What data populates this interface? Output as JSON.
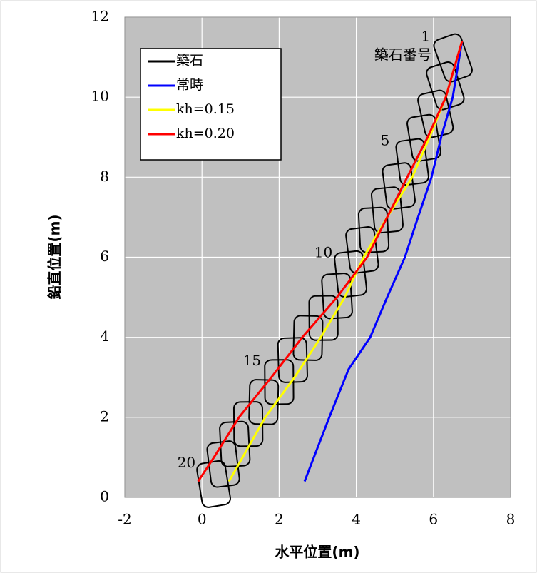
{
  "chart_data": {
    "type": "line",
    "x_label": "水平位置(m)",
    "y_label": "鉛直位置(m)",
    "annotation": "築石番号",
    "xlim": [
      -2,
      8
    ],
    "xticks": [
      -2,
      0,
      2,
      4,
      6,
      8
    ],
    "ylim": [
      0,
      12
    ],
    "yticks": [
      0,
      2,
      4,
      6,
      8,
      10,
      12
    ],
    "grid": true,
    "legend": "upper-left",
    "series": [
      {
        "name": "築石",
        "color": "#000000",
        "style": "stones",
        "x": [
          6.5,
          6.3,
          6.05,
          5.75,
          5.45,
          5.1,
          4.8,
          4.45,
          4.15,
          3.85,
          3.5,
          3.15,
          2.75,
          2.35,
          2.0,
          1.6,
          1.2,
          0.85,
          0.55,
          0.3
        ],
        "values": [
          11.0,
          10.3,
          9.6,
          9.0,
          8.4,
          7.8,
          7.2,
          6.7,
          6.2,
          5.6,
          5.05,
          4.5,
          4.0,
          3.45,
          2.9,
          2.4,
          1.85,
          1.35,
          0.85,
          0.35
        ],
        "value_labels": [
          "1",
          null,
          null,
          null,
          "5",
          null,
          null,
          null,
          null,
          "10",
          null,
          null,
          null,
          null,
          "15",
          null,
          null,
          null,
          null,
          "20"
        ]
      },
      {
        "name": "常時",
        "color": "#0000ff",
        "x": [
          2.66,
          3.3,
          3.8,
          4.36,
          4.8,
          5.26,
          5.6,
          5.95,
          6.2,
          6.5,
          6.74
        ],
        "values": [
          0.4,
          2.0,
          3.2,
          4.0,
          5.0,
          6.0,
          7.0,
          8.0,
          9.0,
          10.0,
          11.4
        ]
      },
      {
        "name": "kh=0.15",
        "color": "#ffff00",
        "x": [
          0.7,
          1.64,
          2.4,
          3.08,
          3.7,
          4.19,
          4.8,
          5.45,
          5.9,
          6.32,
          6.74
        ],
        "values": [
          0.4,
          2.0,
          3.0,
          4.0,
          5.0,
          6.0,
          7.0,
          8.0,
          9.0,
          10.0,
          11.4
        ]
      },
      {
        "name": "kh=0.20",
        "color": "#ff0000",
        "x": [
          -0.1,
          0.31,
          0.96,
          1.8,
          2.6,
          3.5,
          4.28,
          4.8,
          5.32,
          5.85,
          6.32,
          6.74
        ],
        "values": [
          0.4,
          1.0,
          2.0,
          3.0,
          4.0,
          5.0,
          6.0,
          7.0,
          8.0,
          9.0,
          10.0,
          11.4
        ]
      }
    ]
  }
}
